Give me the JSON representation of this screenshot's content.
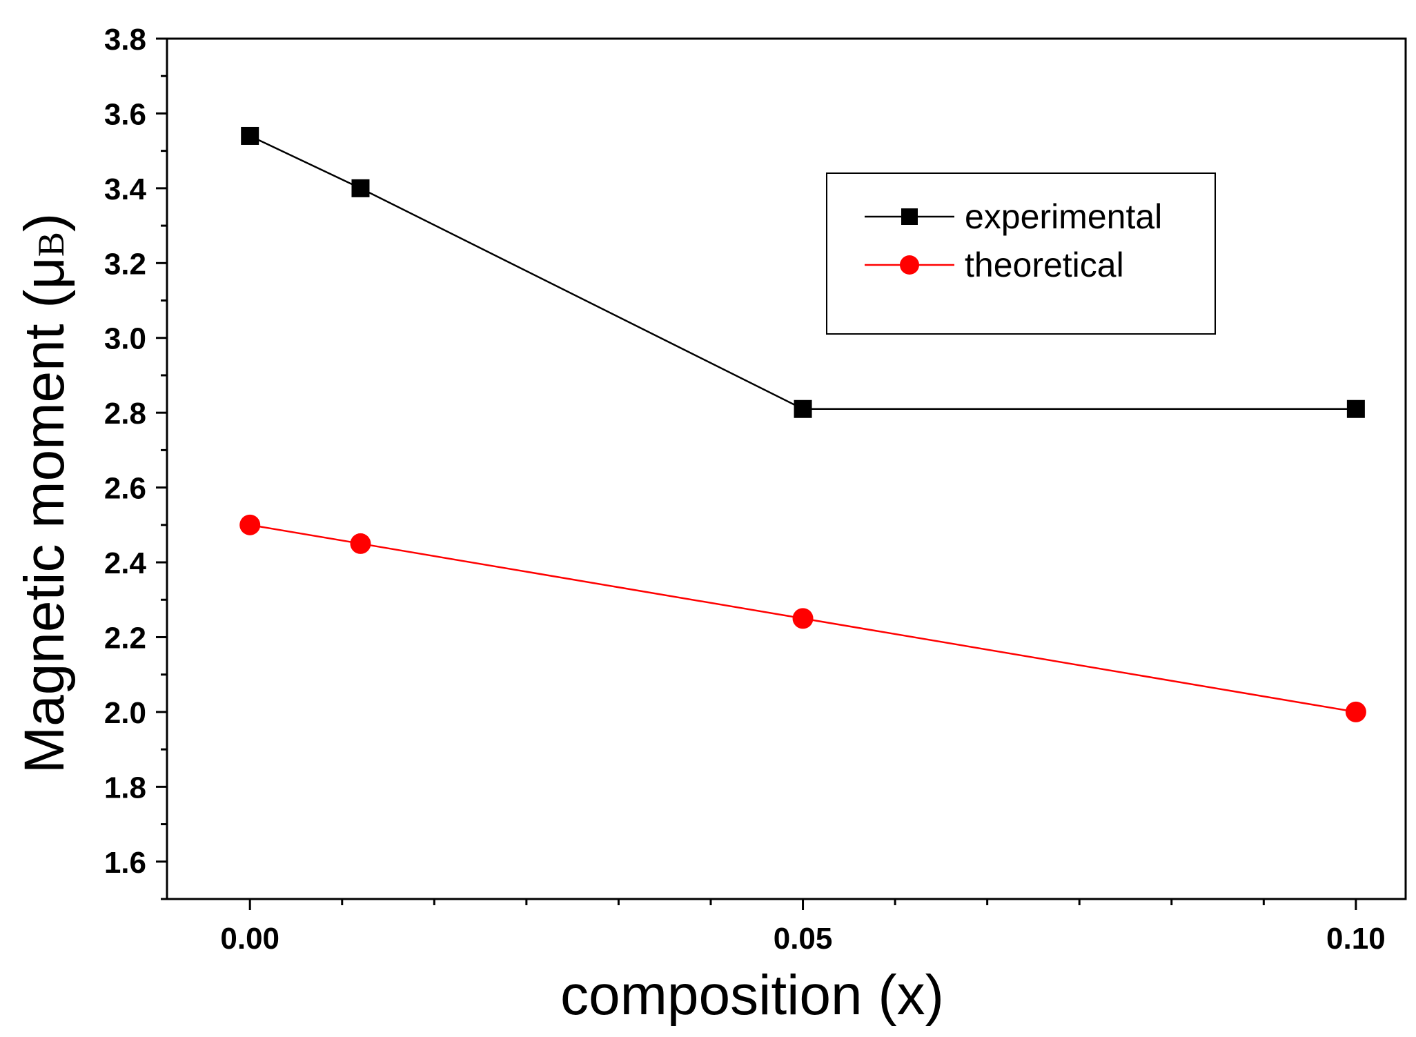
{
  "chart_data": {
    "type": "line",
    "title": "",
    "xlabel": "composition (x)",
    "ylabel": {
      "main": "Magnetic moment (",
      "mu": "μ",
      "sub": "B",
      "close": ")"
    },
    "xlim": [
      -0.0075,
      0.1045
    ],
    "ylim": [
      1.5,
      3.8
    ],
    "xticks": [
      {
        "value": 0.0,
        "label": "0.00"
      },
      {
        "value": 0.05,
        "label": "0.05"
      },
      {
        "value": 0.1,
        "label": "0.10"
      }
    ],
    "yticks": [
      {
        "value": 1.6,
        "label": "1.6"
      },
      {
        "value": 1.8,
        "label": "1.8"
      },
      {
        "value": 2.0,
        "label": "2.0"
      },
      {
        "value": 2.2,
        "label": "2.2"
      },
      {
        "value": 2.4,
        "label": "2.4"
      },
      {
        "value": 2.6,
        "label": "2.6"
      },
      {
        "value": 2.8,
        "label": "2.8"
      },
      {
        "value": 3.0,
        "label": "3.0"
      },
      {
        "value": 3.2,
        "label": "3.2"
      },
      {
        "value": 3.4,
        "label": "3.4"
      },
      {
        "value": 3.6,
        "label": "3.6"
      },
      {
        "value": 3.8,
        "label": "3.8"
      }
    ],
    "grid": false,
    "legend_position": "top-right",
    "series": [
      {
        "name": "experimental",
        "color": "#000000",
        "marker": "square",
        "x": [
          0.0,
          0.01,
          0.05,
          0.1
        ],
        "y": [
          3.54,
          3.4,
          2.81,
          2.81
        ]
      },
      {
        "name": "theoretical",
        "color": "#ff0000",
        "marker": "circle",
        "x": [
          0.0,
          0.01,
          0.05,
          0.1
        ],
        "y": [
          2.5,
          2.45,
          2.25,
          2.0
        ]
      }
    ]
  }
}
